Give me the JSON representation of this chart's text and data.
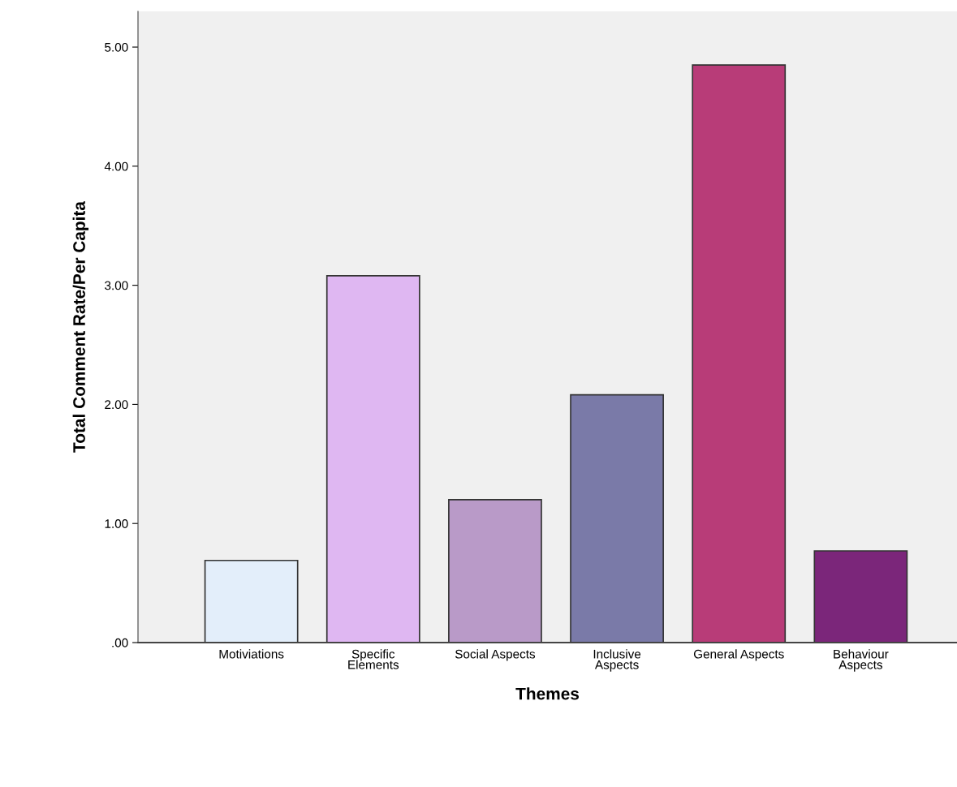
{
  "chart_data": {
    "type": "bar",
    "xlabel": "Themes",
    "ylabel": "Total Comment Rate/Per Capita",
    "categories": [
      "Motiviations",
      "Specific\nElements",
      "Social Aspects",
      "Inclusive\nAspects",
      "General Aspects",
      "Behaviour\nAspects"
    ],
    "values": [
      0.69,
      3.08,
      1.2,
      2.08,
      4.85,
      0.77
    ],
    "colors": [
      "#e3eefa",
      "#dfb7f2",
      "#b99ac8",
      "#7a7aa8",
      "#b83c78",
      "#7b267a"
    ],
    "ylim": [
      0,
      5.3
    ],
    "yticks": [
      {
        "value": 0,
        "label": ".00"
      },
      {
        "value": 1,
        "label": "1.00"
      },
      {
        "value": 2,
        "label": "2.00"
      },
      {
        "value": 3,
        "label": "3.00"
      },
      {
        "value": 4,
        "label": "4.00"
      },
      {
        "value": 5,
        "label": "5.00"
      }
    ],
    "grid": false,
    "legend": false
  }
}
